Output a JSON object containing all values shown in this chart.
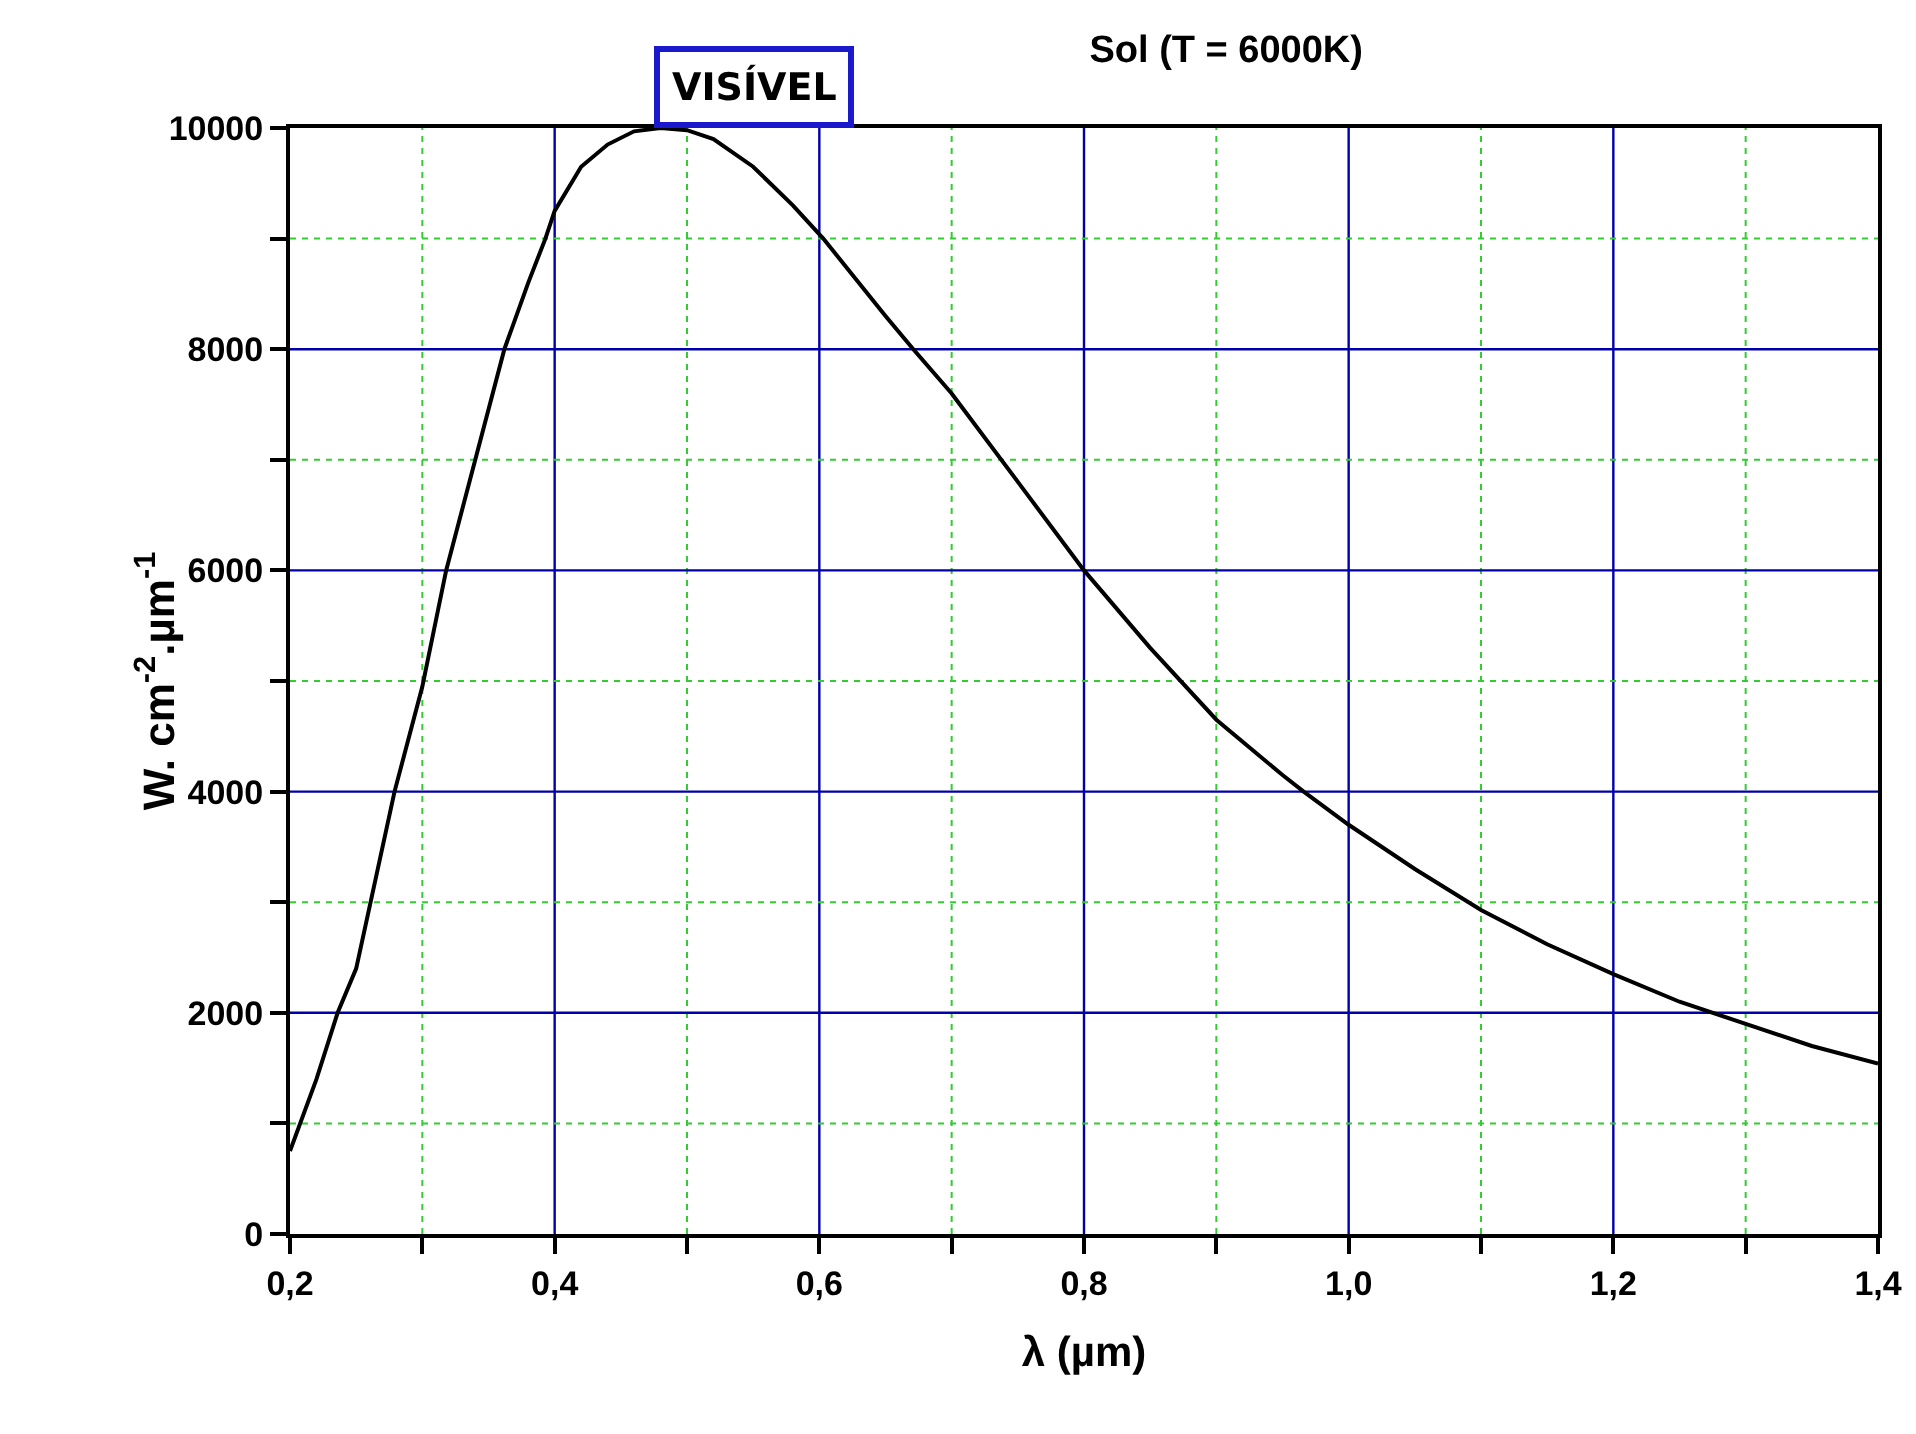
{
  "chart_data": {
    "type": "line",
    "title": "Sol (T = 6000K)",
    "xlabel": "λ (µm)",
    "ylabel": "W. cm$^{-2}$.µm$^{-1}$",
    "annotations": [
      "VISÍVEL"
    ],
    "x": [
      0.2,
      0.22,
      0.236,
      0.25,
      0.279,
      0.3,
      0.318,
      0.34,
      0.362,
      0.38,
      0.393,
      0.4,
      0.42,
      0.44,
      0.46,
      0.48,
      0.5,
      0.52,
      0.55,
      0.58,
      0.603,
      0.65,
      0.671,
      0.7,
      0.75,
      0.8,
      0.85,
      0.9,
      0.95,
      0.966,
      1.0,
      1.05,
      1.1,
      1.15,
      1.2,
      1.25,
      1.3,
      1.35,
      1.4
    ],
    "series": [
      {
        "color": "#000000",
        "values": [
          750,
          1400,
          2000,
          2400,
          4000,
          4950,
          6000,
          7000,
          8000,
          8600,
          9000,
          9250,
          9650,
          9850,
          9970,
          10000,
          9980,
          9900,
          9650,
          9300,
          9000,
          8300,
          8000,
          7600,
          6800,
          6000,
          5300,
          4650,
          4150,
          4000,
          3700,
          3300,
          2930,
          2620,
          2350,
          2100,
          1900,
          1700,
          1540
        ]
      }
    ],
    "xlim": [
      0.2,
      1.4
    ],
    "xticks": [
      {
        "value": 0.2,
        "label": "0,2"
      },
      {
        "value": 0.3,
        "label": null
      },
      {
        "value": 0.4,
        "label": "0,4"
      },
      {
        "value": 0.5,
        "label": null
      },
      {
        "value": 0.6,
        "label": "0,6"
      },
      {
        "value": 0.7,
        "label": null
      },
      {
        "value": 0.8,
        "label": "0,8"
      },
      {
        "value": 0.9,
        "label": null
      },
      {
        "value": 1.0,
        "label": "1,0"
      },
      {
        "value": 1.1,
        "label": null
      },
      {
        "value": 1.2,
        "label": "1,2"
      },
      {
        "value": 1.3,
        "label": null
      },
      {
        "value": 1.4,
        "label": "1,4"
      }
    ],
    "ylim": [
      0,
      10000
    ],
    "yticks": [
      0,
      {
        "value": 1000,
        "label": null
      },
      2000,
      {
        "value": 3000,
        "label": null
      },
      4000,
      {
        "value": 5000,
        "label": null
      },
      6000,
      {
        "value": 7000,
        "label": null
      },
      8000,
      {
        "value": 9000,
        "label": null
      },
      10000
    ],
    "grid": true,
    "marker": "none",
    "line_style": "solid"
  }
}
